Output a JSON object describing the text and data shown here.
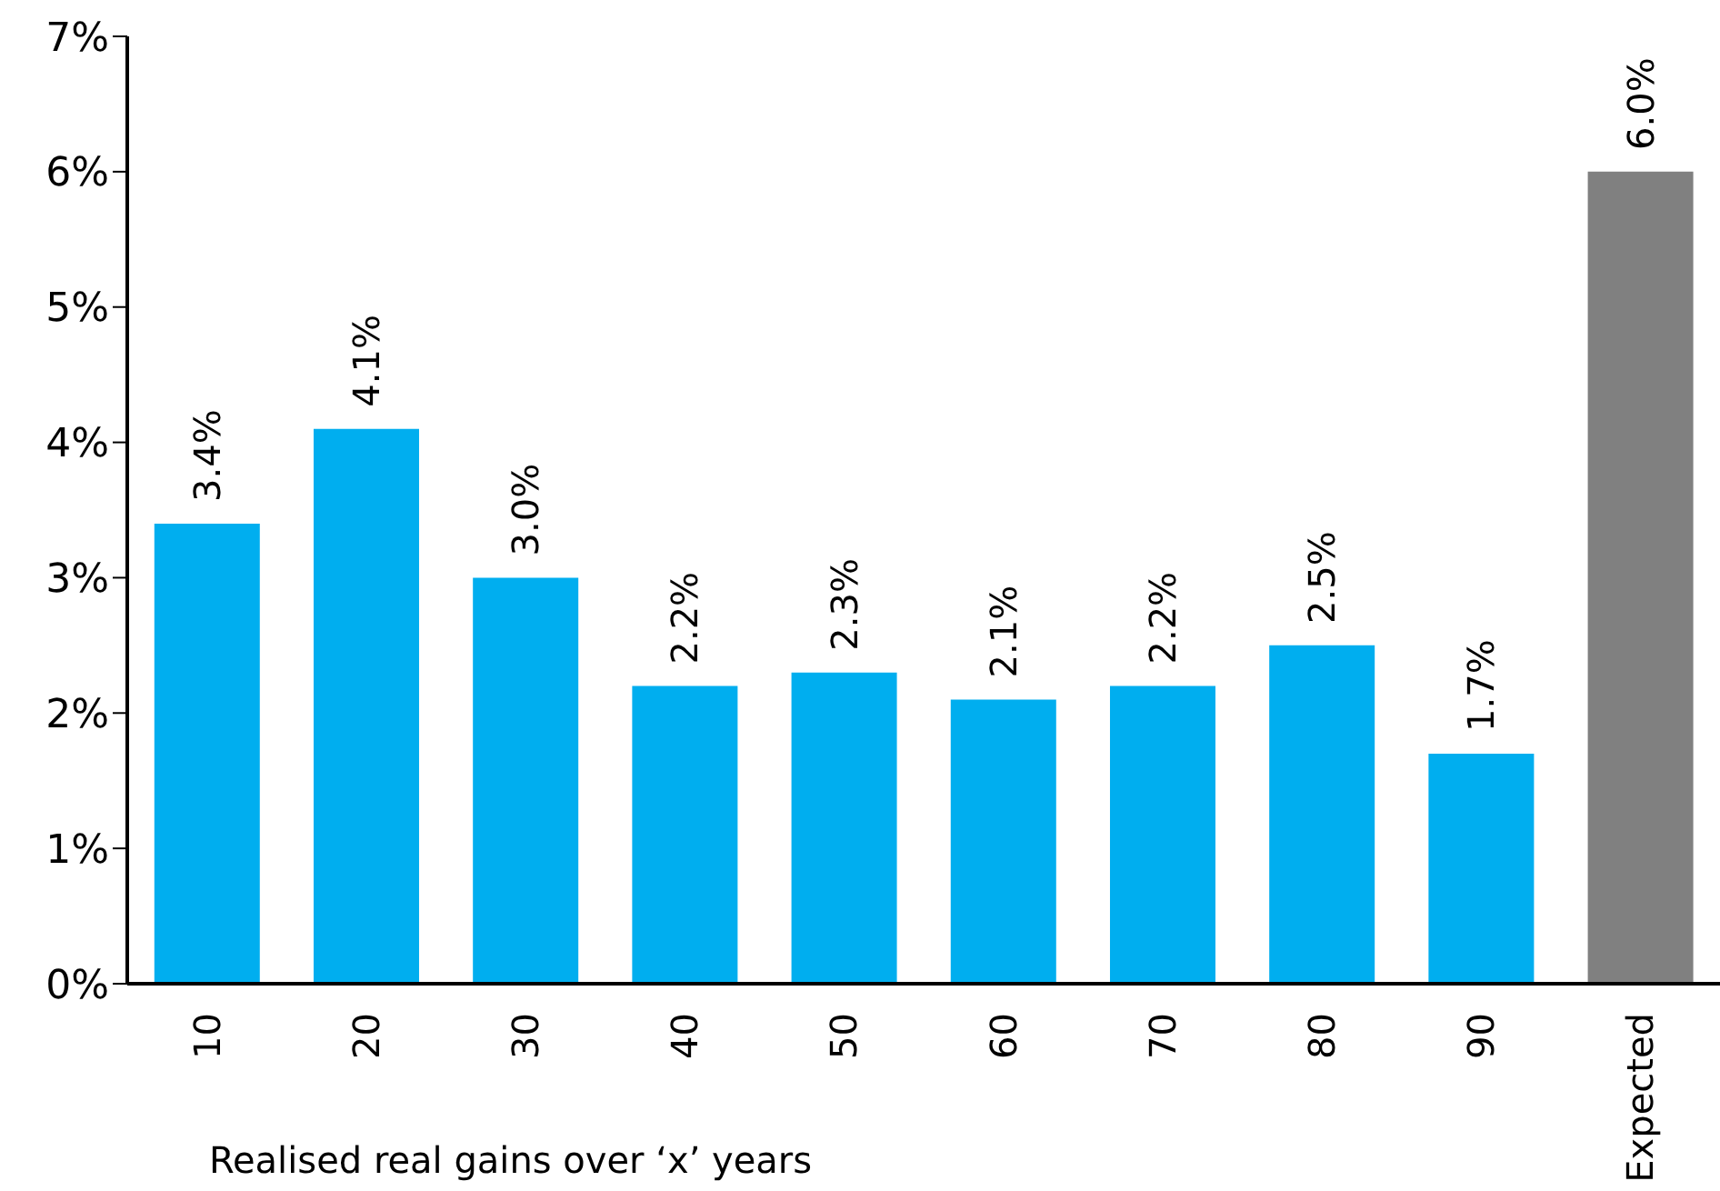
{
  "chart_data": {
    "type": "bar",
    "xlabel": "Realised real gains over ‘x’ years",
    "categories": [
      "10",
      "20",
      "30",
      "40",
      "50",
      "60",
      "70",
      "80",
      "90",
      "Expected"
    ],
    "values": [
      3.4,
      4.1,
      3.0,
      2.2,
      2.3,
      2.1,
      2.2,
      2.5,
      1.7,
      6.0
    ],
    "colors": [
      "#00aeef",
      "#00aeef",
      "#00aeef",
      "#00aeef",
      "#00aeef",
      "#00aeef",
      "#00aeef",
      "#00aeef",
      "#00aeef",
      "#808080"
    ],
    "value_labels": [
      "3.4%",
      "4.1%",
      "3.0%",
      "2.2%",
      "2.3%",
      "2.1%",
      "2.2%",
      "2.5%",
      "1.7%",
      "6.0%"
    ],
    "ylim": [
      0,
      7
    ],
    "yticks": [
      {
        "value": 0,
        "label": "0%"
      },
      {
        "value": 1,
        "label": "1%"
      },
      {
        "value": 2,
        "label": "2%"
      },
      {
        "value": 3,
        "label": "3%"
      },
      {
        "value": 4,
        "label": "4%"
      },
      {
        "value": 5,
        "label": "5%"
      },
      {
        "value": 6,
        "label": "6%"
      },
      {
        "value": 7,
        "label": "7%"
      }
    ],
    "grid": false,
    "legend": false
  }
}
